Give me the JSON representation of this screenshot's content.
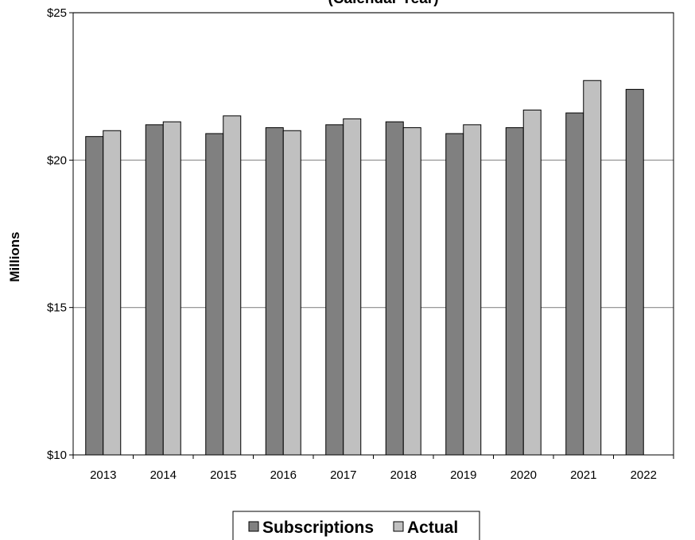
{
  "chart_data": {
    "type": "bar",
    "title": "(Calendar Year)",
    "xlabel": "",
    "ylabel": "Millions",
    "ylim": [
      10,
      25
    ],
    "y_ticks": [
      10,
      15,
      20,
      25
    ],
    "y_tick_labels": [
      "$10",
      "$15",
      "$20",
      "$25"
    ],
    "categories": [
      "2013",
      "2014",
      "2015",
      "2016",
      "2017",
      "2018",
      "2019",
      "2020",
      "2021",
      "2022"
    ],
    "grid": true,
    "legend_position": "bottom",
    "series": [
      {
        "name": "Subscriptions",
        "color": "#808080",
        "values": [
          20.8,
          21.2,
          20.9,
          21.1,
          21.2,
          21.3,
          20.9,
          21.1,
          21.6,
          22.4
        ]
      },
      {
        "name": "Actual",
        "color": "#c0c0c0",
        "values": [
          21.0,
          21.3,
          21.5,
          21.0,
          21.4,
          21.1,
          21.2,
          21.7,
          22.7,
          null
        ]
      }
    ]
  }
}
